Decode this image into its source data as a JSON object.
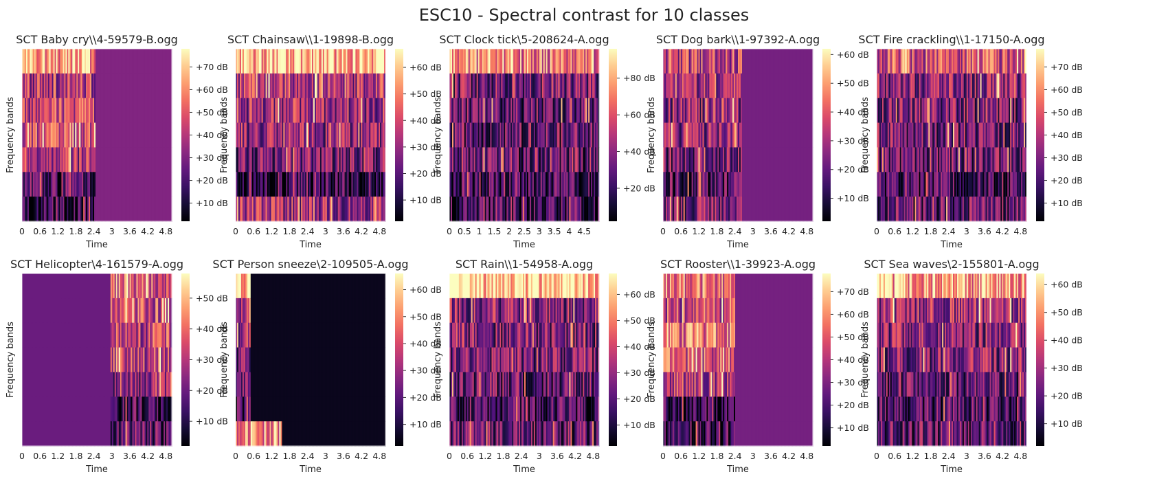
{
  "figure_title": "ESC10 - Spectral contrast for 10 classes",
  "chart_data": [
    {
      "type": "heatmap",
      "title": "SCT Baby cry\\\\4-59579-B.ogg",
      "xlabel": "Time",
      "ylabel": "Frequency bands",
      "xticks": [
        "0",
        "0.6",
        "1.2",
        "1.8",
        "2.4",
        "3",
        "3.6",
        "4.2",
        "4.8"
      ],
      "xlim": [
        0,
        5
      ],
      "bands": 7,
      "colorbar": {
        "ticks": [
          "+10 dB",
          "+20 dB",
          "+30 dB",
          "+40 dB",
          "+50 dB",
          "+60 dB",
          "+70 dB"
        ],
        "range_db": [
          2,
          78
        ]
      },
      "active_until": 2.45,
      "silence_level": 0.38,
      "band_levels": [
        0.82,
        0.5,
        0.55,
        0.58,
        0.48,
        0.25,
        0.15
      ]
    },
    {
      "type": "heatmap",
      "title": "SCT Chainsaw\\\\1-19898-B.ogg",
      "xlabel": "Time",
      "ylabel": "Frequency bands",
      "xticks": [
        "0",
        "0.6",
        "1.2",
        "1.8",
        "2.4",
        "3",
        "3.6",
        "4.2",
        "4.8"
      ],
      "xlim": [
        0,
        5
      ],
      "bands": 7,
      "colorbar": {
        "ticks": [
          "+10 dB",
          "+20 dB",
          "+30 dB",
          "+40 dB",
          "+50 dB",
          "+60 dB"
        ],
        "range_db": [
          2,
          67
        ]
      },
      "active_until": 5,
      "silence_level": 0.3,
      "band_levels": [
        0.85,
        0.5,
        0.45,
        0.4,
        0.35,
        0.15,
        0.45
      ]
    },
    {
      "type": "heatmap",
      "title": "SCT Clock tick\\5-208624-A.ogg",
      "xlabel": "Time",
      "ylabel": "Frequency bands",
      "xticks": [
        "0",
        "0.5",
        "1",
        "1.5",
        "2",
        "2.5",
        "3",
        "3.5",
        "4",
        "4.5"
      ],
      "xlim": [
        0,
        5
      ],
      "bands": 7,
      "colorbar": {
        "ticks": [
          "+20 dB",
          "+40 dB",
          "+60 dB",
          "+80 dB"
        ],
        "range_db": [
          2,
          96
        ]
      },
      "active_until": 5,
      "silence_level": 0.3,
      "band_levels": [
        0.7,
        0.35,
        0.3,
        0.3,
        0.28,
        0.22,
        0.18
      ]
    },
    {
      "type": "heatmap",
      "title": "SCT Dog bark\\\\1-97392-A.ogg",
      "xlabel": "Time",
      "ylabel": "Frequency bands",
      "xticks": [
        "0",
        "0.6",
        "1.2",
        "1.8",
        "2.4",
        "3",
        "3.6",
        "4.2",
        "4.8"
      ],
      "xlim": [
        0,
        5
      ],
      "bands": 7,
      "colorbar": {
        "ticks": [
          "+10 dB",
          "+20 dB",
          "+30 dB",
          "+40 dB",
          "+50 dB",
          "+60 dB"
        ],
        "range_db": [
          2,
          62
        ]
      },
      "active_until": 2.65,
      "silence_level": 0.35,
      "band_levels": [
        0.55,
        0.45,
        0.4,
        0.4,
        0.35,
        0.25,
        0.35
      ]
    },
    {
      "type": "heatmap",
      "title": "SCT Fire crackling\\\\1-17150-A.ogg",
      "xlabel": "Time",
      "ylabel": "Frequency bands",
      "xticks": [
        "0",
        "0.6",
        "1.2",
        "1.8",
        "2.4",
        "3",
        "3.6",
        "4.2",
        "4.8"
      ],
      "xlim": [
        0,
        5
      ],
      "bands": 7,
      "colorbar": {
        "ticks": [
          "+10 dB",
          "+20 dB",
          "+30 dB",
          "+40 dB",
          "+50 dB",
          "+60 dB",
          "+70 dB"
        ],
        "range_db": [
          2,
          78
        ]
      },
      "active_until": 5,
      "silence_level": 0.3,
      "band_levels": [
        0.6,
        0.4,
        0.35,
        0.35,
        0.32,
        0.22,
        0.3
      ]
    },
    {
      "type": "heatmap",
      "title": "SCT Helicopter\\4-161579-A.ogg",
      "xlabel": "Time",
      "ylabel": "Frequency bands",
      "xticks": [
        "0",
        "0.6",
        "1.2",
        "1.8",
        "2.4",
        "3",
        "3.6",
        "4.2",
        "4.8"
      ],
      "xlim": [
        0,
        5
      ],
      "bands": 7,
      "colorbar": {
        "ticks": [
          "+10 dB",
          "+20 dB",
          "+30 dB",
          "+40 dB",
          "+50 dB"
        ],
        "range_db": [
          2,
          58
        ]
      },
      "active_from": 2.95,
      "silence_level": 0.32,
      "band_levels": [
        0.65,
        0.6,
        0.5,
        0.55,
        0.4,
        0.2,
        0.3
      ]
    },
    {
      "type": "heatmap",
      "title": "SCT Person sneeze\\2-109505-A.ogg",
      "xlabel": "Time",
      "ylabel": "Frequency bands",
      "xticks": [
        "0",
        "0.6",
        "1.2",
        "1.8",
        "2.4",
        "3",
        "3.6",
        "4.2",
        "4.8"
      ],
      "xlim": [
        0,
        5
      ],
      "bands": 7,
      "colorbar": {
        "ticks": [
          "+10 dB",
          "+20 dB",
          "+30 dB",
          "+40 dB",
          "+50 dB",
          "+60 dB"
        ],
        "range_db": [
          2,
          66
        ]
      },
      "active_until": 0.5,
      "silence_level": 0.05,
      "band_levels": [
        0.8,
        0.5,
        0.4,
        0.35,
        0.3,
        0.25,
        0.75
      ],
      "bottom_band_until": 1.55
    },
    {
      "type": "heatmap",
      "title": "SCT Rain\\\\1-54958-A.ogg",
      "xlabel": "Time",
      "ylabel": "Frequency bands",
      "xticks": [
        "0",
        "0.6",
        "1.2",
        "1.8",
        "2.4",
        "3",
        "3.6",
        "4.2",
        "4.8"
      ],
      "xlim": [
        0,
        5
      ],
      "bands": 7,
      "colorbar": {
        "ticks": [
          "+10 dB",
          "+20 dB",
          "+30 dB",
          "+40 dB",
          "+50 dB",
          "+60 dB"
        ],
        "range_db": [
          2,
          68
        ]
      },
      "active_until": 5,
      "silence_level": 0.3,
      "band_levels": [
        0.92,
        0.4,
        0.35,
        0.35,
        0.3,
        0.2,
        0.3
      ]
    },
    {
      "type": "heatmap",
      "title": "SCT Rooster\\\\1-39923-A.ogg",
      "xlabel": "Time",
      "ylabel": "Frequency bands",
      "xticks": [
        "0",
        "0.6",
        "1.2",
        "1.8",
        "2.4",
        "3",
        "3.6",
        "4.2",
        "4.8"
      ],
      "xlim": [
        0,
        5
      ],
      "bands": 7,
      "colorbar": {
        "ticks": [
          "+10 dB",
          "+20 dB",
          "+30 dB",
          "+40 dB",
          "+50 dB",
          "+60 dB",
          "+70 dB"
        ],
        "range_db": [
          2,
          78
        ]
      },
      "active_until": 2.4,
      "silence_level": 0.35,
      "band_levels": [
        0.7,
        0.55,
        0.7,
        0.6,
        0.5,
        0.15,
        0.2
      ]
    },
    {
      "type": "heatmap",
      "title": "SCT Sea waves\\2-155801-A.ogg",
      "xlabel": "Time",
      "ylabel": "Frequency bands",
      "xticks": [
        "0",
        "0.6",
        "1.2",
        "1.8",
        "2.4",
        "3",
        "3.6",
        "4.2",
        "4.8"
      ],
      "xlim": [
        0,
        5
      ],
      "bands": 7,
      "colorbar": {
        "ticks": [
          "+10 dB",
          "+20 dB",
          "+30 dB",
          "+40 dB",
          "+50 dB",
          "+60 dB"
        ],
        "range_db": [
          2,
          64
        ]
      },
      "active_until": 5,
      "silence_level": 0.3,
      "band_levels": [
        0.8,
        0.45,
        0.4,
        0.38,
        0.3,
        0.25,
        0.28
      ]
    }
  ]
}
